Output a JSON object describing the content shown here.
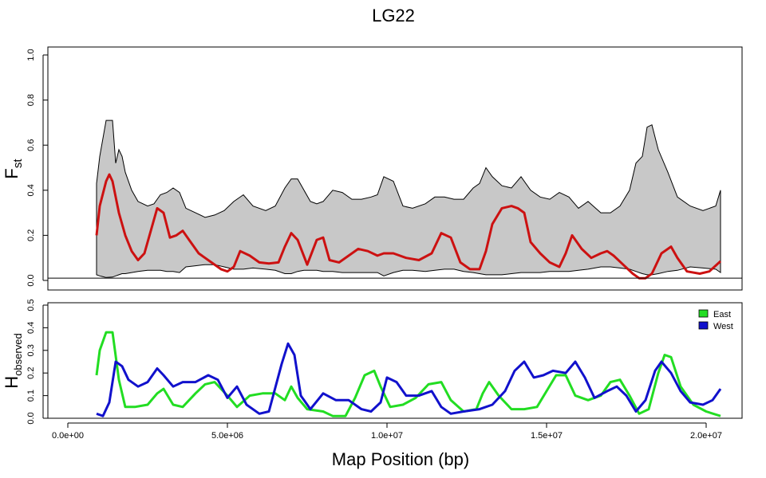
{
  "chart_data": [
    {
      "type": "area",
      "panel": "fst",
      "title": "LG22",
      "ylabel_main": "F",
      "ylabel_sub": "st",
      "xlim": [
        0,
        21000000
      ],
      "ylim": [
        0,
        1.0
      ],
      "y_ticks": [
        "0.0",
        "0.2",
        "0.4",
        "0.6",
        "0.8",
        "1.0"
      ],
      "y_tick_values": [
        0,
        0.2,
        0.4,
        0.6,
        0.8,
        1.0
      ],
      "colors": {
        "band_fill": "#c8c8c8",
        "band_stroke": "#000000",
        "mean_line": "#cc1111"
      },
      "hline": 0.01,
      "band_x": [
        900000,
        1000000,
        1200000,
        1400000,
        1500000,
        1600000,
        1700000,
        1800000,
        2000000,
        2200000,
        2500000,
        2700000,
        2900000,
        3100000,
        3300000,
        3500000,
        3700000,
        4000000,
        4300000,
        4600000,
        4900000,
        5200000,
        5500000,
        5800000,
        6200000,
        6500000,
        6800000,
        7000000,
        7200000,
        7400000,
        7600000,
        7800000,
        8000000,
        8300000,
        8600000,
        8900000,
        9200000,
        9500000,
        9700000,
        9900000,
        10200000,
        10500000,
        10800000,
        11200000,
        11500000,
        11800000,
        12100000,
        12400000,
        12700000,
        12900000,
        13100000,
        13300000,
        13600000,
        13900000,
        14200000,
        14500000,
        14800000,
        15100000,
        15400000,
        15700000,
        16000000,
        16300000,
        16700000,
        17000000,
        17300000,
        17600000,
        17800000,
        18000000,
        18150000,
        18300000,
        18500000,
        18800000,
        19100000,
        19500000,
        19900000,
        20300000,
        20450000
      ],
      "band_upper": [
        0.43,
        0.55,
        0.71,
        0.71,
        0.52,
        0.58,
        0.55,
        0.48,
        0.4,
        0.35,
        0.33,
        0.34,
        0.38,
        0.39,
        0.41,
        0.39,
        0.32,
        0.3,
        0.28,
        0.29,
        0.31,
        0.35,
        0.38,
        0.33,
        0.31,
        0.33,
        0.41,
        0.45,
        0.45,
        0.4,
        0.35,
        0.34,
        0.35,
        0.4,
        0.39,
        0.36,
        0.36,
        0.37,
        0.38,
        0.46,
        0.44,
        0.33,
        0.32,
        0.34,
        0.37,
        0.37,
        0.36,
        0.36,
        0.41,
        0.43,
        0.5,
        0.46,
        0.42,
        0.41,
        0.46,
        0.4,
        0.37,
        0.36,
        0.39,
        0.37,
        0.32,
        0.35,
        0.3,
        0.3,
        0.33,
        0.4,
        0.52,
        0.55,
        0.68,
        0.69,
        0.58,
        0.48,
        0.37,
        0.33,
        0.31,
        0.33,
        0.4
      ],
      "band_lower": [
        0.025,
        0.02,
        0.013,
        0.015,
        0.02,
        0.025,
        0.03,
        0.03,
        0.035,
        0.04,
        0.045,
        0.045,
        0.045,
        0.04,
        0.04,
        0.035,
        0.06,
        0.065,
        0.07,
        0.07,
        0.06,
        0.05,
        0.05,
        0.055,
        0.05,
        0.045,
        0.03,
        0.03,
        0.04,
        0.045,
        0.045,
        0.045,
        0.04,
        0.04,
        0.035,
        0.035,
        0.035,
        0.035,
        0.035,
        0.02,
        0.035,
        0.045,
        0.045,
        0.04,
        0.045,
        0.05,
        0.05,
        0.04,
        0.035,
        0.03,
        0.025,
        0.025,
        0.025,
        0.03,
        0.035,
        0.035,
        0.035,
        0.04,
        0.04,
        0.04,
        0.045,
        0.05,
        0.06,
        0.06,
        0.055,
        0.05,
        0.04,
        0.03,
        0.025,
        0.025,
        0.03,
        0.04,
        0.045,
        0.06,
        0.055,
        0.05,
        0.035
      ],
      "mean_x": [
        900000,
        1000000,
        1200000,
        1300000,
        1400000,
        1600000,
        1800000,
        2000000,
        2200000,
        2400000,
        2600000,
        2800000,
        3000000,
        3200000,
        3400000,
        3600000,
        3800000,
        4100000,
        4500000,
        4800000,
        5000000,
        5200000,
        5400000,
        5700000,
        6000000,
        6300000,
        6600000,
        6800000,
        7000000,
        7200000,
        7500000,
        7800000,
        8000000,
        8200000,
        8500000,
        8800000,
        9100000,
        9400000,
        9700000,
        9900000,
        10200000,
        10600000,
        11000000,
        11400000,
        11700000,
        12000000,
        12300000,
        12600000,
        12900000,
        13100000,
        13300000,
        13600000,
        13900000,
        14100000,
        14300000,
        14500000,
        14800000,
        15100000,
        15400000,
        15600000,
        15800000,
        16100000,
        16400000,
        16700000,
        16900000,
        17100000,
        17400000,
        17700000,
        17900000,
        18100000,
        18300000,
        18600000,
        18900000,
        19100000,
        19400000,
        19800000,
        20100000,
        20450000
      ],
      "mean_y": [
        0.2,
        0.33,
        0.44,
        0.47,
        0.44,
        0.3,
        0.2,
        0.13,
        0.09,
        0.12,
        0.22,
        0.32,
        0.3,
        0.19,
        0.2,
        0.22,
        0.18,
        0.12,
        0.08,
        0.05,
        0.04,
        0.06,
        0.13,
        0.11,
        0.08,
        0.075,
        0.08,
        0.15,
        0.21,
        0.18,
        0.07,
        0.18,
        0.19,
        0.09,
        0.08,
        0.11,
        0.14,
        0.13,
        0.11,
        0.12,
        0.12,
        0.1,
        0.09,
        0.12,
        0.21,
        0.19,
        0.08,
        0.05,
        0.05,
        0.13,
        0.25,
        0.32,
        0.33,
        0.32,
        0.3,
        0.17,
        0.12,
        0.08,
        0.06,
        0.12,
        0.2,
        0.14,
        0.1,
        0.12,
        0.13,
        0.11,
        0.07,
        0.03,
        0.01,
        0.01,
        0.03,
        0.12,
        0.15,
        0.1,
        0.04,
        0.03,
        0.04,
        0.085
      ]
    },
    {
      "type": "line",
      "panel": "hobs",
      "ylabel_main": "H",
      "ylabel_sub": "observed",
      "xlabel": "Map Position (bp)",
      "xlim": [
        0,
        21000000
      ],
      "ylim": [
        0,
        0.5
      ],
      "y_ticks": [
        "0.0",
        "0.1",
        "0.2",
        "0.3",
        "0.4",
        "0.5"
      ],
      "y_tick_values": [
        0,
        0.1,
        0.2,
        0.3,
        0.4,
        0.5
      ],
      "x_ticks": [
        "0.0e+00",
        "5.0e+06",
        "1.0e+07",
        "1.5e+07",
        "2.0e+07"
      ],
      "x_tick_values": [
        0,
        5000000,
        10000000,
        15000000,
        20000000
      ],
      "legend": {
        "placement": "top-right",
        "entries": [
          {
            "label": "East",
            "color": "#22dd22"
          },
          {
            "label": "West",
            "color": "#1111cc"
          }
        ]
      },
      "series": [
        {
          "name": "East",
          "color": "#22dd22",
          "x": [
            900000,
            1000000,
            1200000,
            1400000,
            1600000,
            1800000,
            2100000,
            2500000,
            2800000,
            3000000,
            3300000,
            3600000,
            4000000,
            4300000,
            4600000,
            5000000,
            5300000,
            5700000,
            6100000,
            6500000,
            6800000,
            7000000,
            7200000,
            7500000,
            8000000,
            8300000,
            8700000,
            9000000,
            9300000,
            9600000,
            9800000,
            10100000,
            10500000,
            10900000,
            11300000,
            11700000,
            12000000,
            12400000,
            12800000,
            13000000,
            13200000,
            13500000,
            13900000,
            14300000,
            14700000,
            15000000,
            15300000,
            15600000,
            15900000,
            16300000,
            16700000,
            17000000,
            17300000,
            17600000,
            17900000,
            18200000,
            18500000,
            18700000,
            18900000,
            19200000,
            19600000,
            20000000,
            20450000
          ],
          "y": [
            0.19,
            0.3,
            0.38,
            0.38,
            0.17,
            0.05,
            0.05,
            0.06,
            0.11,
            0.13,
            0.06,
            0.05,
            0.11,
            0.15,
            0.16,
            0.1,
            0.05,
            0.1,
            0.11,
            0.11,
            0.08,
            0.14,
            0.09,
            0.04,
            0.03,
            0.01,
            0.01,
            0.09,
            0.19,
            0.21,
            0.14,
            0.05,
            0.06,
            0.09,
            0.15,
            0.16,
            0.08,
            0.03,
            0.04,
            0.11,
            0.16,
            0.1,
            0.04,
            0.04,
            0.05,
            0.12,
            0.19,
            0.19,
            0.1,
            0.08,
            0.1,
            0.16,
            0.17,
            0.1,
            0.02,
            0.04,
            0.2,
            0.28,
            0.27,
            0.14,
            0.06,
            0.03,
            0.01
          ]
        },
        {
          "name": "West",
          "color": "#1111cc",
          "x": [
            900000,
            1100000,
            1300000,
            1500000,
            1700000,
            1900000,
            2200000,
            2500000,
            2800000,
            3000000,
            3300000,
            3600000,
            4000000,
            4400000,
            4700000,
            5000000,
            5300000,
            5600000,
            6000000,
            6300000,
            6700000,
            6900000,
            7100000,
            7300000,
            7600000,
            8000000,
            8400000,
            8800000,
            9200000,
            9500000,
            9800000,
            10000000,
            10300000,
            10600000,
            11000000,
            11400000,
            11700000,
            12000000,
            12400000,
            12900000,
            13300000,
            13700000,
            14000000,
            14300000,
            14600000,
            14900000,
            15200000,
            15600000,
            15900000,
            16200000,
            16500000,
            16900000,
            17200000,
            17500000,
            17800000,
            18100000,
            18400000,
            18600000,
            18900000,
            19200000,
            19500000,
            19900000,
            20200000,
            20450000
          ],
          "y": [
            0.02,
            0.01,
            0.07,
            0.25,
            0.23,
            0.17,
            0.14,
            0.16,
            0.22,
            0.19,
            0.14,
            0.16,
            0.16,
            0.19,
            0.17,
            0.09,
            0.14,
            0.06,
            0.02,
            0.03,
            0.24,
            0.33,
            0.28,
            0.1,
            0.04,
            0.11,
            0.08,
            0.08,
            0.04,
            0.03,
            0.07,
            0.18,
            0.16,
            0.1,
            0.1,
            0.12,
            0.05,
            0.02,
            0.03,
            0.04,
            0.06,
            0.12,
            0.21,
            0.25,
            0.18,
            0.19,
            0.21,
            0.2,
            0.25,
            0.18,
            0.09,
            0.12,
            0.14,
            0.1,
            0.03,
            0.08,
            0.21,
            0.25,
            0.2,
            0.12,
            0.07,
            0.06,
            0.08,
            0.13
          ]
        }
      ]
    }
  ]
}
